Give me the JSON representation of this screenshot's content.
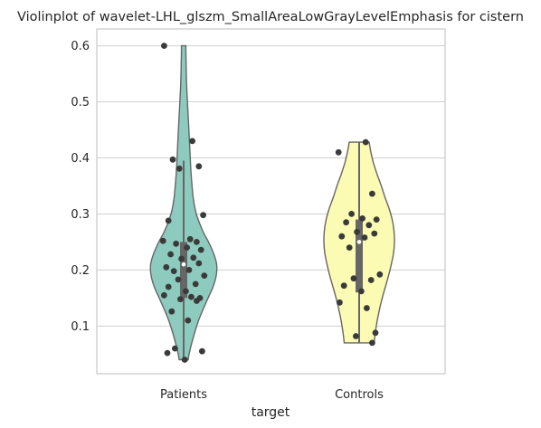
{
  "chart_data": {
    "type": "violin",
    "title": "Violinplot of wavelet-LHL_glszm_SmallAreaLowGrayLevelEmphasis for cistern",
    "xlabel": "target",
    "ylabel": "",
    "categories": [
      "Patients",
      "Controls"
    ],
    "yticks": [
      "0.1",
      "0.2",
      "0.3",
      "0.4",
      "0.5",
      "0.6"
    ],
    "ylim": [
      0.015,
      0.63
    ],
    "grid": "horizontal",
    "colors": {
      "Patients": "#8dcbbf",
      "Controls": "#fbfbb3",
      "outline": "#666666",
      "points": "#3a3a3a",
      "box": "#666666",
      "grid": "#d0d0d0",
      "axis": "#c8c8c8"
    },
    "violins": [
      {
        "name": "Patients",
        "min": 0.04,
        "max": 0.6,
        "q1": 0.15,
        "median": 0.21,
        "q3": 0.25,
        "whisker_low": 0.04,
        "whisker_high": 0.395,
        "profile": [
          [
            0.6,
            0.024
          ],
          [
            0.57,
            0.027
          ],
          [
            0.53,
            0.033
          ],
          [
            0.49,
            0.045
          ],
          [
            0.45,
            0.058
          ],
          [
            0.41,
            0.07
          ],
          [
            0.37,
            0.083
          ],
          [
            0.33,
            0.105
          ],
          [
            0.3,
            0.14
          ],
          [
            0.27,
            0.21
          ],
          [
            0.25,
            0.275
          ],
          [
            0.23,
            0.33
          ],
          [
            0.21,
            0.365
          ],
          [
            0.19,
            0.36
          ],
          [
            0.17,
            0.325
          ],
          [
            0.15,
            0.27
          ],
          [
            0.13,
            0.215
          ],
          [
            0.11,
            0.165
          ],
          [
            0.09,
            0.125
          ],
          [
            0.07,
            0.09
          ],
          [
            0.05,
            0.06
          ],
          [
            0.04,
            0.05
          ]
        ],
        "points": [
          0.6,
          0.43,
          0.397,
          0.385,
          0.381,
          0.298,
          0.288,
          0.255,
          0.252,
          0.25,
          0.247,
          0.24,
          0.236,
          0.228,
          0.222,
          0.22,
          0.212,
          0.205,
          0.2,
          0.198,
          0.19,
          0.183,
          0.175,
          0.17,
          0.162,
          0.155,
          0.152,
          0.15,
          0.148,
          0.145,
          0.126,
          0.11,
          0.06,
          0.055,
          0.052,
          0.04
        ]
      },
      {
        "name": "Controls",
        "min": 0.07,
        "max": 0.428,
        "q1": 0.16,
        "median": 0.25,
        "q3": 0.29,
        "whisker_low": 0.07,
        "whisker_high": 0.428,
        "profile": [
          [
            0.428,
            0.11
          ],
          [
            0.41,
            0.13
          ],
          [
            0.39,
            0.16
          ],
          [
            0.37,
            0.2
          ],
          [
            0.35,
            0.245
          ],
          [
            0.33,
            0.285
          ],
          [
            0.31,
            0.33
          ],
          [
            0.29,
            0.365
          ],
          [
            0.27,
            0.385
          ],
          [
            0.25,
            0.39
          ],
          [
            0.23,
            0.38
          ],
          [
            0.21,
            0.355
          ],
          [
            0.19,
            0.325
          ],
          [
            0.17,
            0.29
          ],
          [
            0.15,
            0.255
          ],
          [
            0.13,
            0.225
          ],
          [
            0.11,
            0.2
          ],
          [
            0.09,
            0.18
          ],
          [
            0.07,
            0.165
          ]
        ],
        "points": [
          0.428,
          0.41,
          0.336,
          0.3,
          0.292,
          0.29,
          0.285,
          0.28,
          0.268,
          0.265,
          0.26,
          0.258,
          0.24,
          0.192,
          0.185,
          0.182,
          0.172,
          0.162,
          0.142,
          0.132,
          0.088,
          0.082,
          0.07
        ]
      }
    ]
  }
}
